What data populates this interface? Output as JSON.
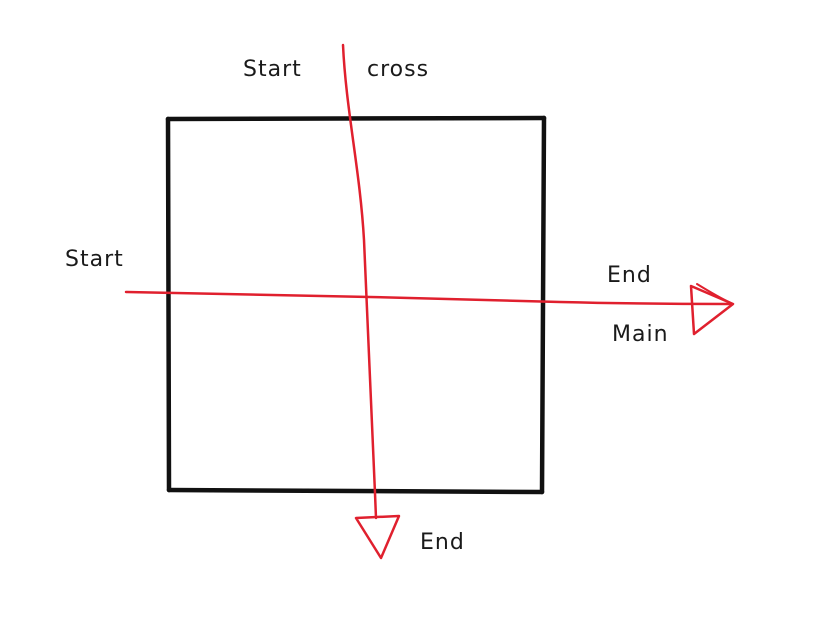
{
  "labels": {
    "cross_start": "Start",
    "cross_name": "cross",
    "main_start": "Start",
    "main_end": "End",
    "main_name": "Main",
    "cross_end": "End"
  },
  "colors": {
    "box": "#111111",
    "arrow": "#e0202e",
    "text": "#1a1a1a",
    "background": "#ffffff"
  }
}
